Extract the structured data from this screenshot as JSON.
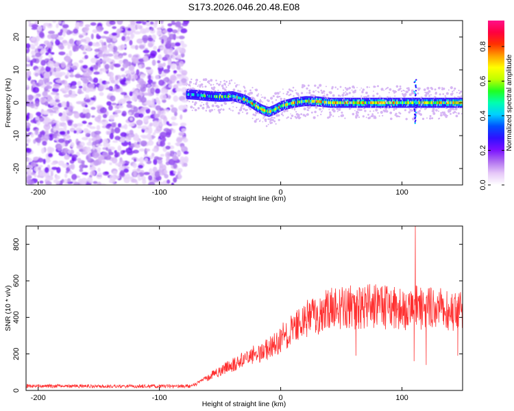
{
  "title": "S173.2026.046.20.48.E08",
  "chart_data": [
    {
      "type": "heatmap",
      "name": "spectrogram",
      "xlabel": "Height of straight line (km)",
      "ylabel": "Frequency (Hz)",
      "xlim": [
        -210,
        150
      ],
      "ylim": [
        -25,
        25
      ],
      "xticks": [
        -200,
        -100,
        0,
        100
      ],
      "yticks": [
        -20,
        -10,
        0,
        10,
        20
      ],
      "noise_region_x": [
        -210,
        -78
      ],
      "signal_start_x": -78,
      "peak_frequency_track": {
        "x": [
          -78,
          -70,
          -60,
          -50,
          -40,
          -30,
          -25,
          -20,
          -15,
          -10,
          -5,
          0,
          10,
          20,
          30,
          40,
          60,
          80,
          100,
          108,
          112,
          120,
          150
        ],
        "y": [
          2.6,
          2.4,
          2.0,
          1.8,
          2.0,
          1.0,
          0.0,
          -1.2,
          -2.2,
          -2.8,
          -2.0,
          -1.0,
          0.0,
          0.5,
          0.4,
          0.0,
          0.0,
          0.0,
          0.0,
          0.0,
          0.0,
          0.0,
          0.0
        ]
      },
      "colorbar": {
        "label": "Normalized spectral amplitude",
        "range": [
          0.0,
          0.95
        ],
        "ticks": [
          "0.0",
          "0.2",
          "0.4",
          "0.6",
          "0.8"
        ],
        "tick_values": [
          0.0,
          0.2,
          0.4,
          0.6,
          0.8
        ],
        "stops": [
          "#ffffff",
          "#e6c8f8",
          "#b070f0",
          "#7a10ff",
          "#3010ff",
          "#0050ff",
          "#00d0ff",
          "#00ffb0",
          "#20ff20",
          "#c0ff00",
          "#ffff00",
          "#ffa000",
          "#ff3000",
          "#ff0040",
          "#ff1088"
        ]
      }
    },
    {
      "type": "line",
      "name": "snr",
      "xlabel": "Height of straight line (km)",
      "ylabel": "SNR (10 * v/v)",
      "xlim": [
        -210,
        150
      ],
      "ylim": [
        0,
        900
      ],
      "xticks": [
        -200,
        -100,
        0,
        100
      ],
      "yticks": [
        0,
        200,
        400,
        600,
        800
      ],
      "color": "#ff3030",
      "envelope": {
        "x": [
          -210,
          -75,
          -65,
          -50,
          -30,
          -10,
          0,
          10,
          20,
          30,
          40,
          50,
          60,
          70,
          80,
          90,
          100,
          110,
          120,
          130,
          140,
          150
        ],
        "y": [
          20,
          20,
          50,
          110,
          170,
          230,
          280,
          340,
          390,
          420,
          440,
          450,
          455,
          460,
          455,
          450,
          445,
          450,
          455,
          450,
          445,
          440
        ]
      },
      "annotations": {
        "spike": {
          "x": 111,
          "y": 900
        },
        "dips": [
          [
            62,
            190
          ],
          [
            110,
            160
          ],
          [
            120,
            140
          ],
          [
            146,
            190
          ]
        ]
      }
    }
  ]
}
